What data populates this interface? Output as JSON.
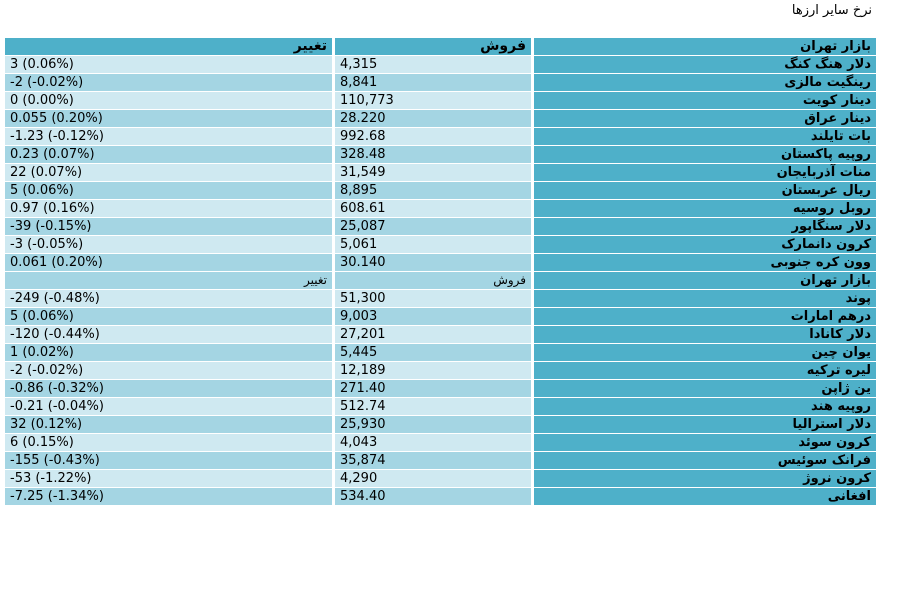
{
  "page_title": "نرخ سایر ارزها",
  "header": {
    "market": "بازار تهران",
    "sell": "فروش",
    "change": "تغییر"
  },
  "group1": [
    {
      "name": "دلار هنگ کنگ",
      "sell": "4,315",
      "change": "3 (0.06%)"
    },
    {
      "name": "رینگیت مالزی",
      "sell": "8,841",
      "change": "-2 (-0.02%)"
    },
    {
      "name": "دینار کویت",
      "sell": "110,773",
      "change": "0 (0.00%)"
    },
    {
      "name": "دینار عراق",
      "sell": "28.220",
      "change": "0.055 (0.20%)"
    },
    {
      "name": "بات تایلند",
      "sell": "992.68",
      "change": "-1.23 (-0.12%)"
    },
    {
      "name": "روپیه پاکستان",
      "sell": "328.48",
      "change": "0.23 (0.07%)"
    },
    {
      "name": "منات آذربایجان",
      "sell": "31,549",
      "change": "22 (0.07%)"
    },
    {
      "name": "ریال عربستان",
      "sell": "8,895",
      "change": "5 (0.06%)"
    },
    {
      "name": "روبل روسیه",
      "sell": "608.61",
      "change": "0.97 (0.16%)"
    },
    {
      "name": "دلار سنگاپور",
      "sell": "25,087",
      "change": "-39 (-0.15%)"
    },
    {
      "name": "کرون دانمارک",
      "sell": "5,061",
      "change": "-3 (-0.05%)"
    },
    {
      "name": "وون کره جنوبی",
      "sell": "30.140",
      "change": "0.061 (0.20%)"
    }
  ],
  "header2": {
    "market": "بازار تهران",
    "sell": "فروش",
    "change": "تغییر"
  },
  "group2": [
    {
      "name": "پوند",
      "sell": "51,300",
      "change": "-249 (-0.48%)"
    },
    {
      "name": "درهم امارات",
      "sell": "9,003",
      "change": "5 (0.06%)"
    },
    {
      "name": "دلار کانادا",
      "sell": "27,201",
      "change": "-120 (-0.44%)"
    },
    {
      "name": "یوان چین",
      "sell": "5,445",
      "change": "1 (0.02%)"
    },
    {
      "name": "لیره ترکیه",
      "sell": "12,189",
      "change": "-2 (-0.02%)"
    },
    {
      "name": "ین ژاپن",
      "sell": "271.40",
      "change": "-0.86 (-0.32%)"
    },
    {
      "name": "روپیه هند",
      "sell": "512.74",
      "change": "-0.21 (-0.04%)"
    },
    {
      "name": "دلار استرالیا",
      "sell": "25,930",
      "change": "32 (0.12%)"
    },
    {
      "name": "کرون سوئد",
      "sell": "4,043",
      "change": "6 (0.15%)"
    },
    {
      "name": "فرانک سوئیس",
      "sell": "35,874",
      "change": "-155 (-0.43%)"
    },
    {
      "name": "کرون نروژ",
      "sell": "4,290",
      "change": "-53 (-1.22%)"
    },
    {
      "name": "افغانی",
      "sell": "534.40",
      "change": "-7.25 (-1.34%)"
    }
  ]
}
